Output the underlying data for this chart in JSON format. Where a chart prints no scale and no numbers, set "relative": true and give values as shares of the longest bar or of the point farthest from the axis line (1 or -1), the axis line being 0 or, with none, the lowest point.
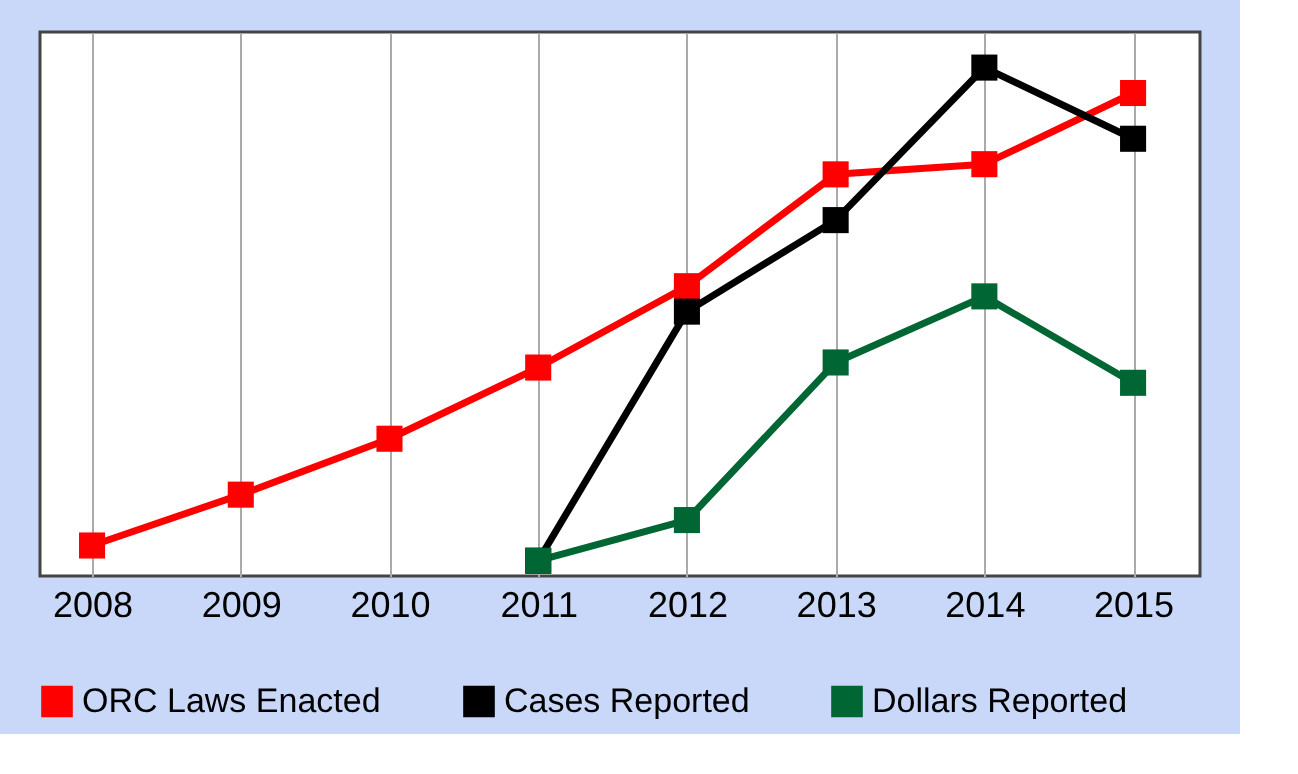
{
  "chart_data": {
    "type": "line",
    "relative": true,
    "categories": [
      "2008",
      "2009",
      "2010",
      "2011",
      "2012",
      "2013",
      "2014",
      "2015"
    ],
    "series": [
      {
        "name": "ORC Laws Enacted",
        "color": "#ff0000",
        "values": [
          0.06,
          0.16,
          0.27,
          0.41,
          0.57,
          0.79,
          0.81,
          0.95
        ]
      },
      {
        "name": "Cases Reported",
        "color": "#000000",
        "values": [
          null,
          null,
          null,
          0.03,
          0.52,
          0.7,
          1.0,
          0.86
        ]
      },
      {
        "name": "Dollars Reported",
        "color": "#006633",
        "values": [
          null,
          null,
          null,
          0.03,
          0.11,
          0.42,
          0.55,
          0.38
        ]
      }
    ],
    "grid": "x",
    "legend": "bottom",
    "marker": "square",
    "line_style": "solid"
  }
}
